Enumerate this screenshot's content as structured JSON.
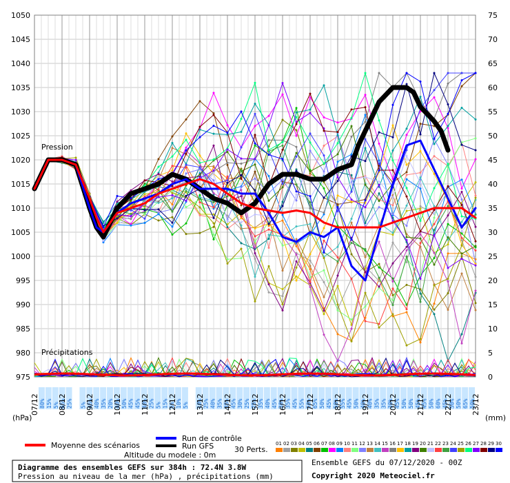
{
  "chart_data": {
    "type": "line",
    "title": "Diagramme des ensembles GEFS sur 384h : 72.4N 3.8W",
    "subtitle": "Pression au niveau de la mer (hPa) , précipitations (mm)",
    "left_unit": "(hPa)",
    "right_unit": "(mm)",
    "pressure_label": "Pression",
    "precip_label": "Précipitations",
    "ylim_left": [
      975,
      1050
    ],
    "yticks_left": [
      975,
      980,
      985,
      990,
      995,
      1000,
      1005,
      1010,
      1015,
      1020,
      1025,
      1030,
      1035,
      1040,
      1045,
      1050
    ],
    "ylim_right": [
      0,
      75
    ],
    "yticks_right": [
      0,
      5,
      10,
      15,
      20,
      25,
      30,
      35,
      40,
      45,
      50,
      55,
      60,
      65,
      70,
      75
    ],
    "x_range_hours": [
      0,
      384
    ],
    "dates": [
      "07/12",
      "08/12",
      "09/12",
      "10/12",
      "11/12",
      "12/12",
      "13/12",
      "14/12",
      "15/12",
      "16/12",
      "17/12",
      "18/12",
      "19/12",
      "20/12",
      "21/12",
      "22/12",
      "23/12"
    ],
    "precip_probabilities": [
      "80%",
      "15%",
      "5%",
      "65%",
      "25%",
      "",
      "5%",
      "45%",
      "40%",
      "35%",
      "20%",
      "40%",
      "50%",
      "45%",
      "45%",
      "40%",
      "25%",
      "5%",
      "15%",
      "5%",
      "10%",
      "5%",
      "",
      "10%",
      "25%",
      "40%",
      "35%",
      "35%",
      "45%",
      "30%",
      "25%",
      "25%",
      "35%",
      "40%",
      "45%",
      "30%",
      "35%",
      "45%",
      "55%",
      "50%",
      "65%",
      "50%",
      "45%",
      "50%",
      "55%",
      "45%",
      "50%",
      "40%",
      "40%",
      "35%",
      "35%",
      "30%",
      "45%",
      "50%",
      "50%",
      "45%",
      "45%",
      "50%",
      "60%",
      "45%",
      "50%",
      "50%",
      "65%",
      "50%"
    ],
    "series": [
      {
        "name": "Moyenne des scénarios",
        "color": "#ff0000",
        "x": [
          0,
          12,
          24,
          36,
          48,
          54,
          60,
          72,
          84,
          96,
          108,
          120,
          132,
          144,
          156,
          168,
          180,
          192,
          204,
          216,
          228,
          240,
          252,
          264,
          276,
          288,
          300,
          312,
          324,
          336,
          348,
          360,
          372,
          384
        ],
        "y": [
          1014,
          1020,
          1020,
          1019,
          1012,
          1008,
          1005,
          1009,
          1010,
          1011,
          1013,
          1014,
          1015,
          1016,
          1015,
          1013,
          1011,
          1010,
          1009.5,
          1009,
          1009.5,
          1009,
          1007,
          1006,
          1006,
          1006,
          1006,
          1007,
          1008,
          1009,
          1010,
          1010,
          1010,
          1008
        ]
      },
      {
        "name": "Run de contrôle",
        "color": "#0000ff",
        "x": [
          0,
          12,
          24,
          36,
          48,
          54,
          60,
          72,
          84,
          96,
          108,
          120,
          132,
          144,
          156,
          168,
          180,
          192,
          204,
          216,
          228,
          240,
          252,
          264,
          276,
          288,
          300,
          312,
          324,
          336,
          348,
          360,
          372,
          384
        ],
        "y": [
          1014,
          1020,
          1020,
          1019,
          1010,
          1006,
          1005,
          1009,
          1011,
          1012,
          1013,
          1015,
          1016,
          1014,
          1014,
          1014,
          1013,
          1013,
          1009,
          1004,
          1003,
          1005,
          1004,
          1006,
          998,
          995,
          1005,
          1015,
          1023,
          1024,
          1018,
          1012,
          1006,
          1010
        ]
      },
      {
        "name": "Run GFS",
        "color": "#000000",
        "x": [
          0,
          12,
          24,
          36,
          48,
          54,
          60,
          72,
          84,
          96,
          108,
          120,
          132,
          144,
          156,
          168,
          180,
          192,
          198,
          204,
          216,
          228,
          240,
          252,
          264,
          276,
          282,
          288,
          294,
          300,
          312,
          324,
          330,
          336,
          348,
          354,
          360
        ],
        "y": [
          1014,
          1020,
          1020,
          1019,
          1010,
          1006,
          1004,
          1010,
          1013,
          1014,
          1015,
          1017,
          1016,
          1014,
          1012,
          1011,
          1009,
          1011,
          1013,
          1015,
          1017,
          1017,
          1016,
          1016,
          1018,
          1019,
          1023,
          1026,
          1029,
          1032,
          1035,
          1035,
          1034,
          1031,
          1028,
          1026,
          1022
        ]
      }
    ],
    "legend": {
      "mean": "Moyenne des scénarios",
      "control": "Run de contrôle",
      "gfs": "Run GFS",
      "perts": "30 Perts.",
      "perts_ids": [
        "01",
        "02",
        "03",
        "04",
        "05",
        "06",
        "07",
        "08",
        "09",
        "10",
        "11",
        "12",
        "13",
        "14",
        "15",
        "16",
        "17",
        "18",
        "19",
        "20",
        "21",
        "22",
        "23",
        "24",
        "25",
        "26",
        "27",
        "28",
        "29",
        "30"
      ],
      "perts_colors": [
        "#ff8000",
        "#a0a0a0",
        "#808000",
        "#c0c000",
        "#008080",
        "#804000",
        "#00c000",
        "#ff00ff",
        "#0080ff",
        "#ff8080",
        "#80ff80",
        "#8080ff",
        "#c08040",
        "#40c0c0",
        "#c040c0",
        "#808080",
        "#ffc000",
        "#00a0a0",
        "#800080",
        "#408000",
        "#c0c0ff",
        "#ff4040",
        "#40a040",
        "#4040ff",
        "#a0a000",
        "#00ff80",
        "#8000ff",
        "#800000",
        "#000080",
        "#0000ff"
      ]
    },
    "altitude": "Altitude du modele : 0m",
    "run_info": "Ensemble GEFS du 07/12/2020 - 00Z",
    "copyright": "Copyright 2020 Meteociel.fr"
  }
}
